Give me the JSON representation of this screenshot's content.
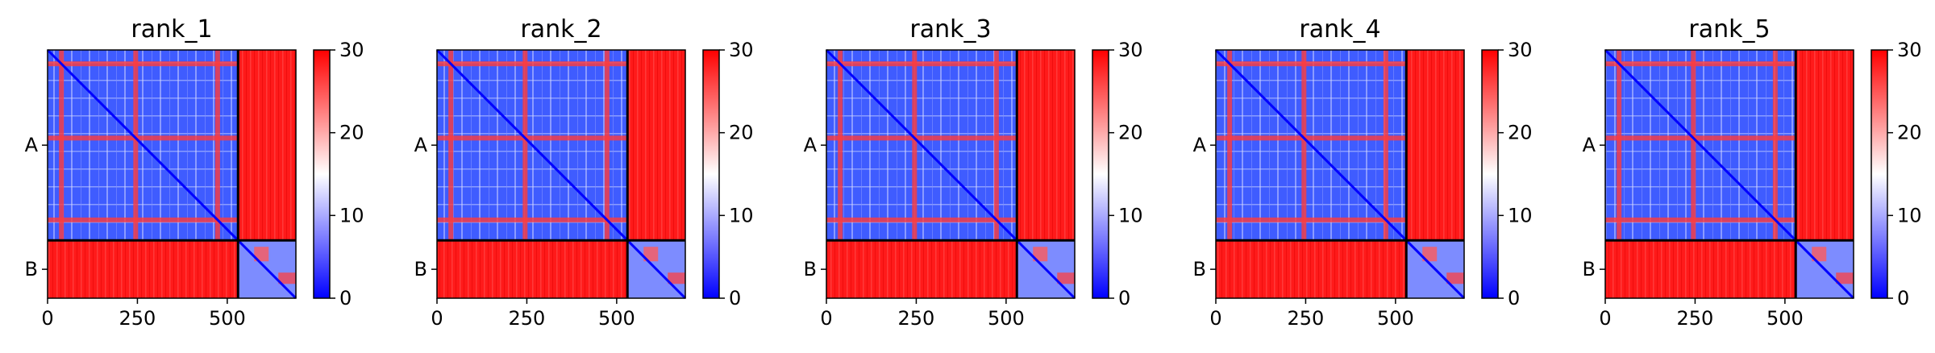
{
  "chart_data": [
    {
      "type": "heatmap",
      "title": "rank_1",
      "x_ticks": [
        "0",
        "250",
        "500"
      ],
      "x_tick_values": [
        0,
        250,
        500
      ],
      "xlim": [
        0,
        691
      ],
      "chains": [
        {
          "name": "A",
          "start": 0,
          "end": 530
        },
        {
          "name": "B",
          "start": 530,
          "end": 691
        }
      ],
      "colorbar": {
        "min": 0,
        "max": 30,
        "ticks": [
          "0",
          "10",
          "20",
          "30"
        ],
        "colormap": "bwr"
      }
    },
    {
      "type": "heatmap",
      "title": "rank_2",
      "x_ticks": [
        "0",
        "250",
        "500"
      ],
      "x_tick_values": [
        0,
        250,
        500
      ],
      "xlim": [
        0,
        691
      ],
      "chains": [
        {
          "name": "A",
          "start": 0,
          "end": 530
        },
        {
          "name": "B",
          "start": 530,
          "end": 691
        }
      ],
      "colorbar": {
        "min": 0,
        "max": 30,
        "ticks": [
          "0",
          "10",
          "20",
          "30"
        ],
        "colormap": "bwr"
      }
    },
    {
      "type": "heatmap",
      "title": "rank_3",
      "x_ticks": [
        "0",
        "250",
        "500"
      ],
      "x_tick_values": [
        0,
        250,
        500
      ],
      "xlim": [
        0,
        691
      ],
      "chains": [
        {
          "name": "A",
          "start": 0,
          "end": 530
        },
        {
          "name": "B",
          "start": 530,
          "end": 691
        }
      ],
      "colorbar": {
        "min": 0,
        "max": 30,
        "ticks": [
          "0",
          "10",
          "20",
          "30"
        ],
        "colormap": "bwr"
      }
    },
    {
      "type": "heatmap",
      "title": "rank_4",
      "x_ticks": [
        "0",
        "250",
        "500"
      ],
      "x_tick_values": [
        0,
        250,
        500
      ],
      "xlim": [
        0,
        691
      ],
      "chains": [
        {
          "name": "A",
          "start": 0,
          "end": 530
        },
        {
          "name": "B",
          "start": 530,
          "end": 691
        }
      ],
      "colorbar": {
        "min": 0,
        "max": 30,
        "ticks": [
          "0",
          "10",
          "20",
          "30"
        ],
        "colormap": "bwr"
      }
    },
    {
      "type": "heatmap",
      "title": "rank_5",
      "x_ticks": [
        "0",
        "250",
        "500"
      ],
      "x_tick_values": [
        0,
        250,
        500
      ],
      "xlim": [
        0,
        691
      ],
      "chains": [
        {
          "name": "A",
          "start": 0,
          "end": 530
        },
        {
          "name": "B",
          "start": 530,
          "end": 691
        }
      ],
      "colorbar": {
        "min": 0,
        "max": 30,
        "ticks": [
          "0",
          "10",
          "20",
          "30"
        ],
        "colormap": "bwr"
      }
    }
  ],
  "colors": {
    "low": "#0000ff",
    "mid": "#ffffff",
    "high": "#ff0000",
    "axis": "#000000"
  }
}
